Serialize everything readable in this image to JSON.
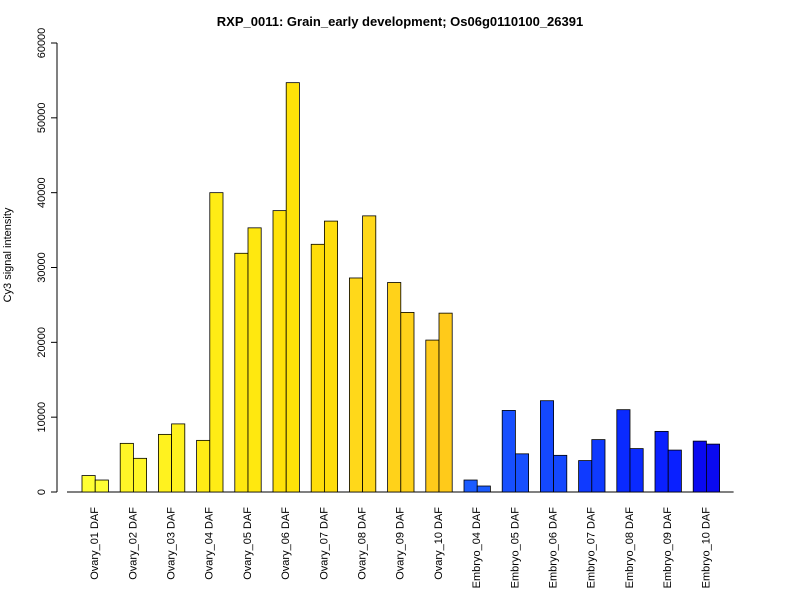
{
  "chart_data": {
    "type": "bar",
    "title": "RXP_0011: Grain_early development; Os06g0110100_26391",
    "xlabel": "",
    "ylabel": "Cy3 signal intensity",
    "ylim": [
      0,
      60000
    ],
    "yticks": [
      0,
      10000,
      20000,
      30000,
      40000,
      50000,
      60000
    ],
    "grid": false,
    "categories": [
      "Ovary_01 DAF",
      "Ovary_02 DAF",
      "Ovary_03 DAF",
      "Ovary_04 DAF",
      "Ovary_05 DAF",
      "Ovary_06 DAF",
      "Ovary_07 DAF",
      "Ovary_08 DAF",
      "Ovary_09 DAF",
      "Ovary_10 DAF",
      "Embryo_04 DAF",
      "Embryo_05 DAF",
      "Embryo_06 DAF",
      "Embryo_07 DAF",
      "Embryo_08 DAF",
      "Embryo_09 DAF",
      "Embryo_10 DAF"
    ],
    "series": [
      {
        "values": [
          2200,
          6500,
          7700,
          6900,
          31900,
          37600,
          33100,
          28600,
          28000,
          20300,
          1600,
          10900,
          12200,
          4200,
          11000,
          8100,
          6800
        ]
      },
      {
        "values": [
          1600,
          4500,
          9100,
          40000,
          35300,
          54700,
          36200,
          36900,
          24000,
          23900,
          800,
          5100,
          4900,
          7000,
          5800,
          5600,
          6400
        ]
      }
    ],
    "colors": [
      "#FFFF33",
      "#FFF627",
      "#FFF21F",
      "#FFEC15",
      "#FFE80F",
      "#FFE208",
      "#FFDD0A",
      "#FFD81A",
      "#FFD21A",
      "#FFCA1A",
      "#1A5BFF",
      "#174FFF",
      "#1448FF",
      "#0F3AFF",
      "#0A2AFF",
      "#0A20FF",
      "#0A0AF0"
    ]
  }
}
